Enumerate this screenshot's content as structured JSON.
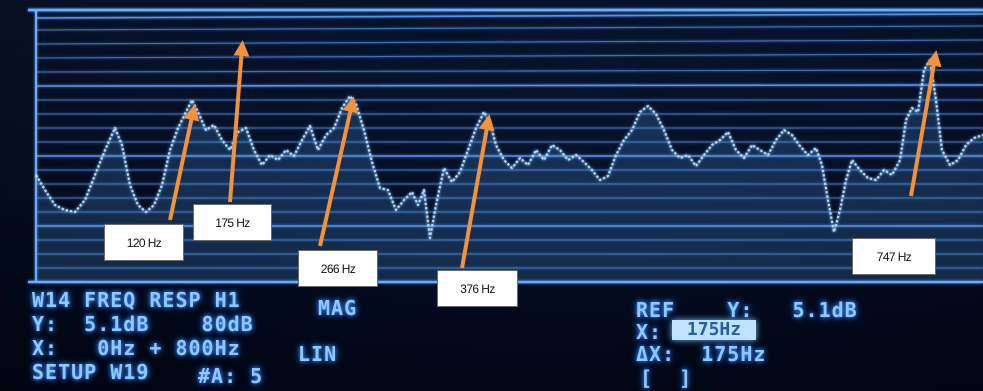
{
  "screen": {
    "line1": {
      "left": "W14 FREQ RESP H1",
      "mid": "MAG"
    },
    "line2": {
      "left": "Y:  5.1dB    80dB"
    },
    "line3": {
      "left": "X:   0Hz + 800Hz",
      "mid": "LIN"
    },
    "line4": {
      "left": "SETUP W19",
      "mid": "#A: 5"
    },
    "ref": {
      "line1": "REF    Y:   5.1dB",
      "x_label": "X:",
      "x_value": "175Hz",
      "dx": "ΔX:  175Hz",
      "brackets": "[  ]"
    }
  },
  "annotations": [
    {
      "text": "120 Hz"
    },
    {
      "text": "175 Hz"
    },
    {
      "text": "266 Hz"
    },
    {
      "text": "376 Hz"
    },
    {
      "text": "747 Hz"
    }
  ],
  "colors": {
    "trace": "#a8d8ff",
    "grid": "#5a9fff",
    "arrow": "#f2923a"
  }
}
